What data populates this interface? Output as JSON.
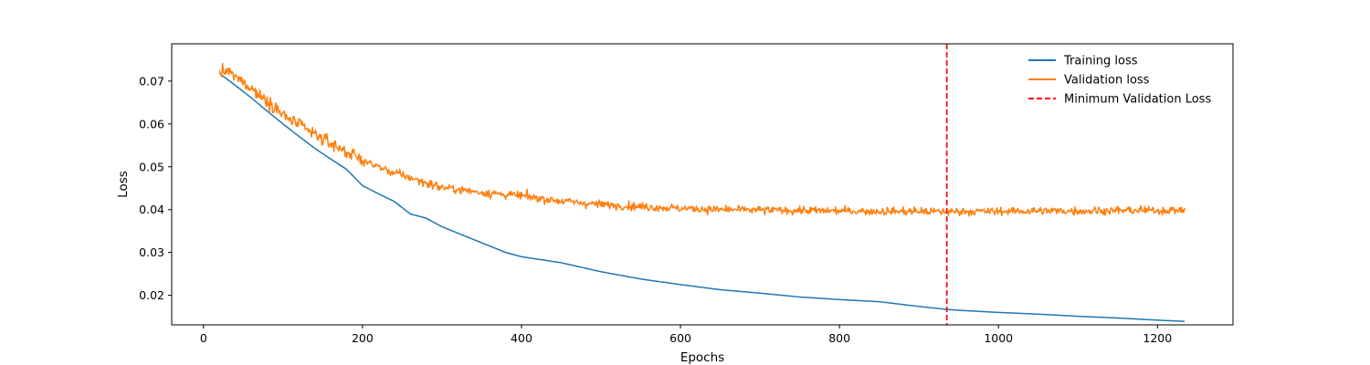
{
  "chart_data": {
    "type": "line",
    "title": "",
    "xlabel": "Epochs",
    "ylabel": "Loss",
    "xlim": [
      -40,
      1295
    ],
    "ylim": [
      0.0131,
      0.0787
    ],
    "xticks": [
      0,
      200,
      400,
      600,
      800,
      1000,
      1200
    ],
    "yticks": [
      0.02,
      0.03,
      0.04,
      0.05,
      0.06,
      0.07
    ],
    "grid": false,
    "legend_position": "top-right",
    "series": [
      {
        "name": "Training loss",
        "color": "#1f77b4",
        "style": "solid",
        "x": [
          20,
          40,
          60,
          80,
          100,
          120,
          140,
          160,
          180,
          200,
          220,
          240,
          260,
          280,
          300,
          320,
          340,
          360,
          380,
          400,
          450,
          500,
          550,
          600,
          650,
          700,
          750,
          800,
          850,
          900,
          935,
          950,
          1000,
          1050,
          1100,
          1150,
          1200,
          1235
        ],
        "y": [
          0.0718,
          0.069,
          0.0661,
          0.063,
          0.06,
          0.0571,
          0.0543,
          0.0518,
          0.0494,
          0.0456,
          0.0437,
          0.0419,
          0.039,
          0.038,
          0.036,
          0.0345,
          0.033,
          0.0315,
          0.03,
          0.029,
          0.0276,
          0.0255,
          0.0238,
          0.0225,
          0.0213,
          0.0205,
          0.0196,
          0.019,
          0.0185,
          0.0174,
          0.0167,
          0.0165,
          0.016,
          0.0156,
          0.0151,
          0.0147,
          0.0142,
          0.0139
        ]
      },
      {
        "name": "Validation loss",
        "color": "#ff7f0e",
        "style": "solid",
        "x": [
          20,
          30,
          40,
          50,
          60,
          70,
          80,
          90,
          100,
          120,
          140,
          160,
          180,
          200,
          220,
          240,
          260,
          280,
          300,
          350,
          400,
          450,
          500,
          550,
          600,
          650,
          700,
          750,
          800,
          850,
          900,
          935,
          950,
          1000,
          1050,
          1100,
          1150,
          1200,
          1235
        ],
        "y": [
          0.0718,
          0.0723,
          0.071,
          0.0697,
          0.0685,
          0.0667,
          0.0655,
          0.064,
          0.062,
          0.0598,
          0.0575,
          0.0555,
          0.0535,
          0.0515,
          0.05,
          0.0485,
          0.0475,
          0.0462,
          0.0452,
          0.044,
          0.0432,
          0.042,
          0.0412,
          0.0407,
          0.0403,
          0.04,
          0.0399,
          0.0398,
          0.0397,
          0.0396,
          0.0396,
          0.0395,
          0.0396,
          0.0396,
          0.0397,
          0.0397,
          0.0398,
          0.0398,
          0.0399
        ]
      }
    ],
    "vlines": [
      {
        "name": "Minimum Validation Loss",
        "x": 935,
        "color": "#ff0000",
        "style": "dashed"
      }
    ]
  }
}
